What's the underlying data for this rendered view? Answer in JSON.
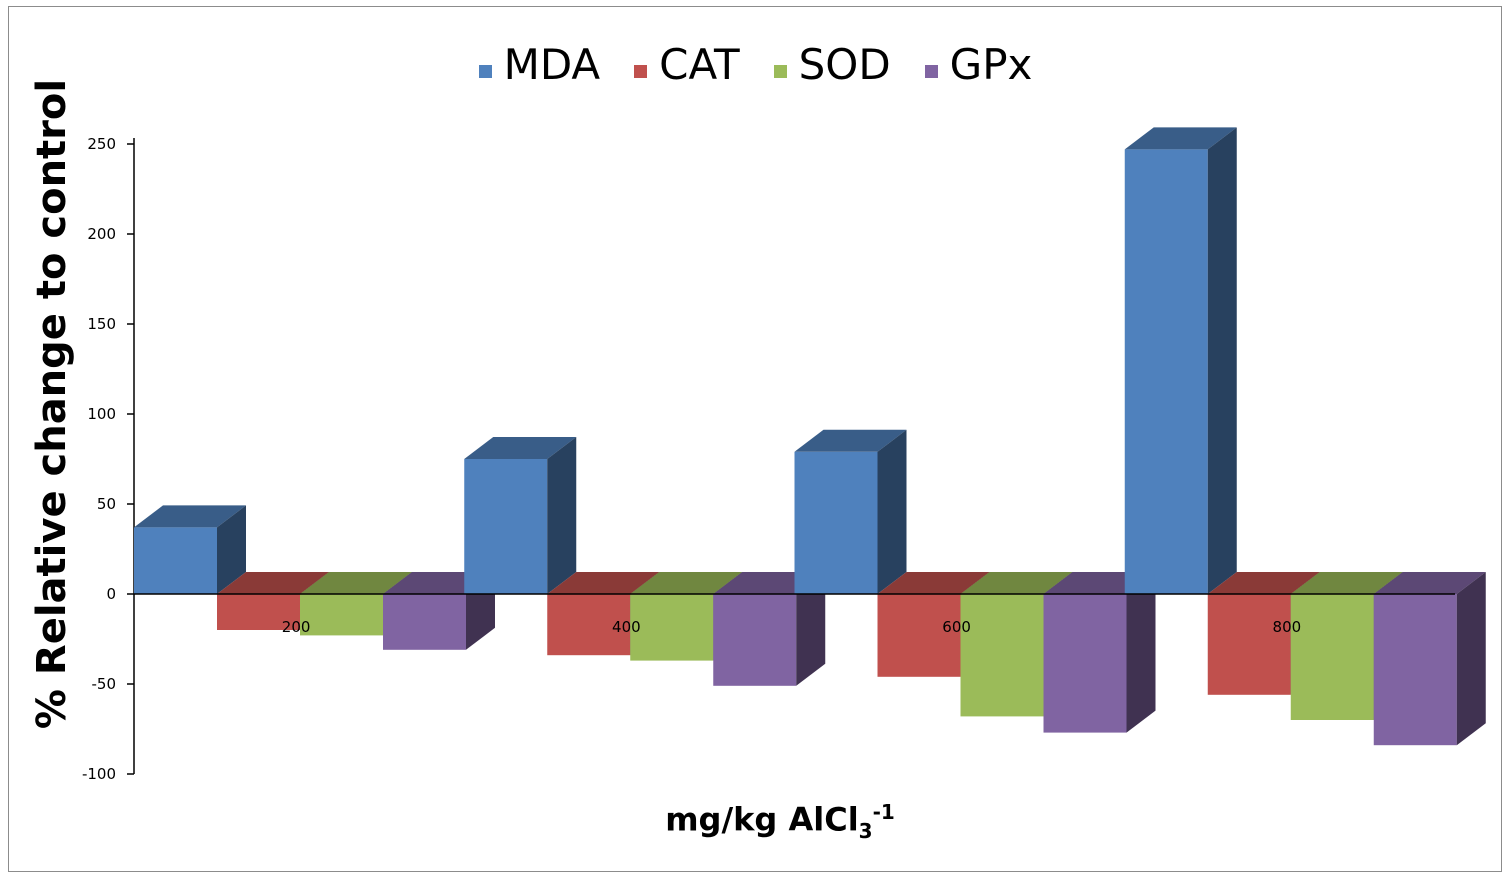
{
  "chart_data": {
    "type": "bar",
    "style": "3d-clustered-column",
    "title": "",
    "xlabel": {
      "main": "mg/kg AlCl",
      "sub": "3",
      "sup": "-1"
    },
    "ylabel": "% Relative change to control",
    "ylim": [
      -100,
      250
    ],
    "yticks": [
      250,
      200,
      150,
      100,
      50,
      0,
      -50,
      -100
    ],
    "categories": [
      "200",
      "400",
      "600",
      "800"
    ],
    "legend_position": "top-center",
    "grid": false,
    "series": [
      {
        "name": "MDA",
        "color": "#4f81bd",
        "values": [
          37,
          75,
          79,
          247
        ]
      },
      {
        "name": "CAT",
        "color": "#c0504d",
        "values": [
          -20,
          -34,
          -46,
          -56
        ]
      },
      {
        "name": "SOD",
        "color": "#9bbb59",
        "values": [
          -23,
          -37,
          -68,
          -70
        ]
      },
      {
        "name": "GPx",
        "color": "#8064a2",
        "values": [
          -31,
          -51,
          -77,
          -84
        ]
      }
    ]
  }
}
